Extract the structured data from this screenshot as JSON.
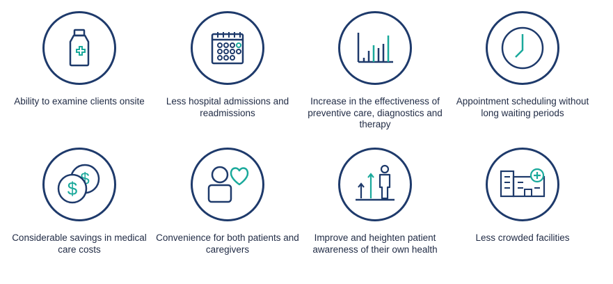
{
  "colors": {
    "navy": "#1e3a6b",
    "teal": "#1aa99b",
    "text": "#1f2a44"
  },
  "benefits": [
    {
      "icon": "medicine-bottle-icon",
      "label": "Ability to examine clients onsite"
    },
    {
      "icon": "calendar-icon",
      "label": "Less hospital admissions and readmissions"
    },
    {
      "icon": "bar-chart-icon",
      "label": "Increase in the effectiveness of preventive care, diagnostics and therapy"
    },
    {
      "icon": "clock-icon",
      "label": "Appointment scheduling without long waiting periods"
    },
    {
      "icon": "coins-dollar-icon",
      "label": "Considerable savings in medical care costs"
    },
    {
      "icon": "person-heart-icon",
      "label": "Convenience for both patients and caregivers"
    },
    {
      "icon": "person-growth-arrows-icon",
      "label": "Improve and heighten patient awareness of their own health"
    },
    {
      "icon": "hospital-building-icon",
      "label": "Less crowded facilities"
    }
  ]
}
